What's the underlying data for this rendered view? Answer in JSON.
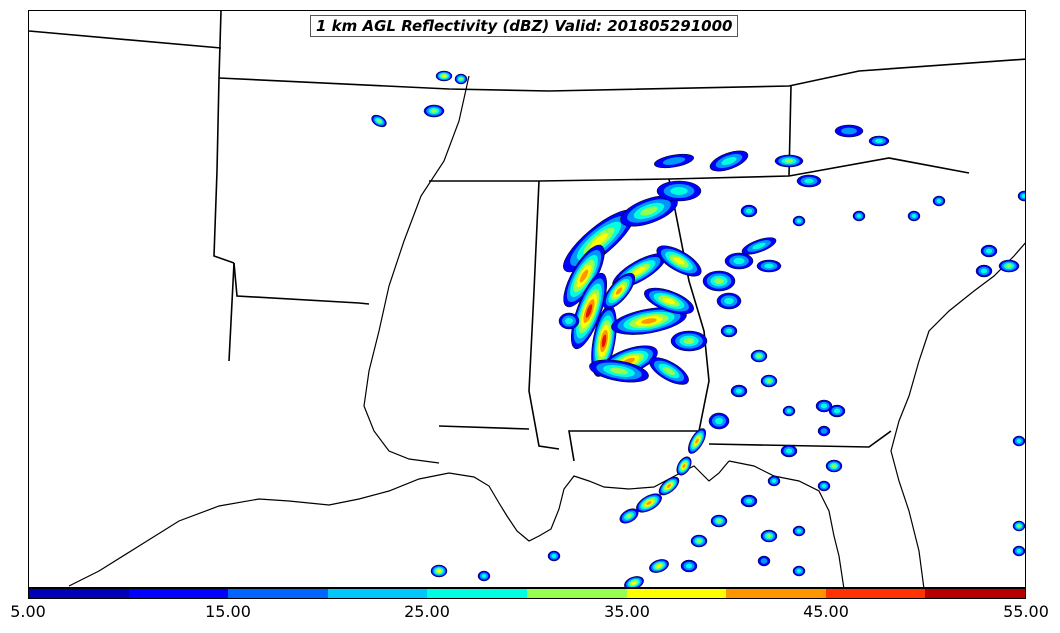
{
  "title": "1 km AGL Reflectivity (dBZ) Valid: 201805291000",
  "colorbar": {
    "min": 5,
    "max": 55,
    "colors": [
      "#0000b4",
      "#0000ff",
      "#0064ff",
      "#00c8ff",
      "#00ffe0",
      "#96ff50",
      "#ffff00",
      "#ff9600",
      "#ff3200",
      "#b40000"
    ],
    "tick_labels": [
      "5.00",
      "15.00",
      "25.00",
      "35.00",
      "45.00",
      "55.00"
    ]
  },
  "levels": [
    {
      "dbz": 5,
      "color": "#0000ff"
    },
    {
      "dbz": 15,
      "color": "#0096ff"
    },
    {
      "dbz": 25,
      "color": "#00ffe0"
    },
    {
      "dbz": 32,
      "color": "#96ff50"
    },
    {
      "dbz": 38,
      "color": "#ffff00"
    },
    {
      "dbz": 43,
      "color": "#ff9600"
    },
    {
      "dbz": 50,
      "color": "#e61400"
    }
  ]
}
